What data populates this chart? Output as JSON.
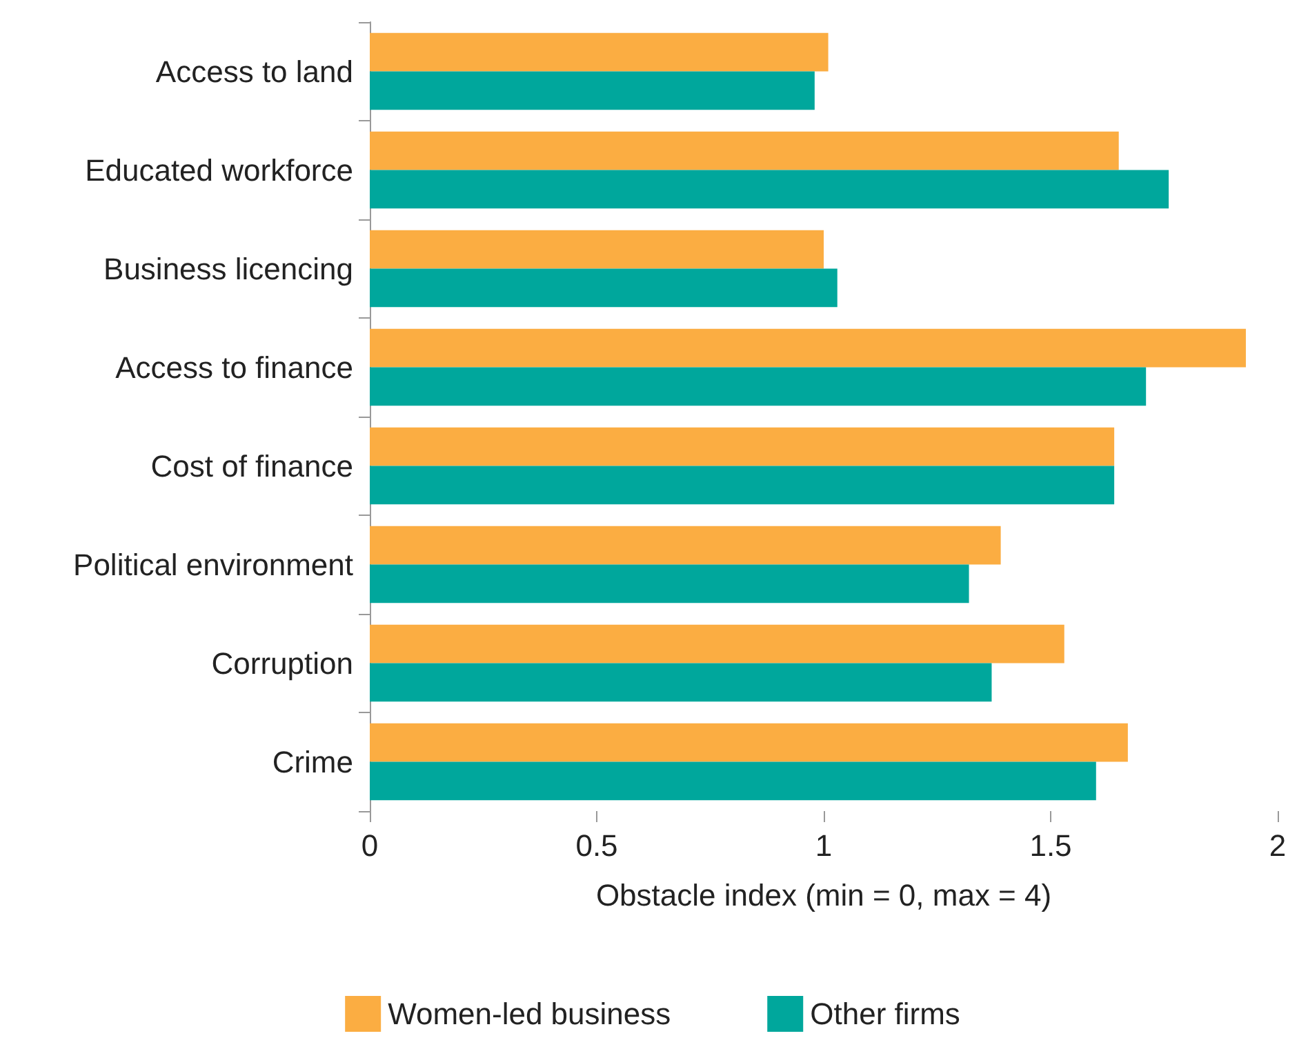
{
  "chart_data": {
    "type": "bar",
    "orientation": "horizontal",
    "categories": [
      "Access to land",
      "Educated workforce",
      "Business licencing",
      "Access to finance",
      "Cost of finance",
      "Political environment",
      "Corruption",
      "Crime"
    ],
    "series": [
      {
        "name": "Women-led business",
        "color": "#fbad42",
        "values": [
          1.01,
          1.65,
          1.0,
          1.93,
          1.64,
          1.39,
          1.53,
          1.67
        ]
      },
      {
        "name": "Other firms",
        "color": "#00a79c",
        "values": [
          0.98,
          1.76,
          1.03,
          1.71,
          1.64,
          1.32,
          1.37,
          1.6
        ]
      }
    ],
    "xlabel": "Obstacle index (min = 0, max = 4)",
    "xlim": [
      0,
      2
    ],
    "xticks": [
      0,
      0.5,
      1,
      1.5,
      2
    ],
    "grid": false,
    "legend": "bottom"
  }
}
